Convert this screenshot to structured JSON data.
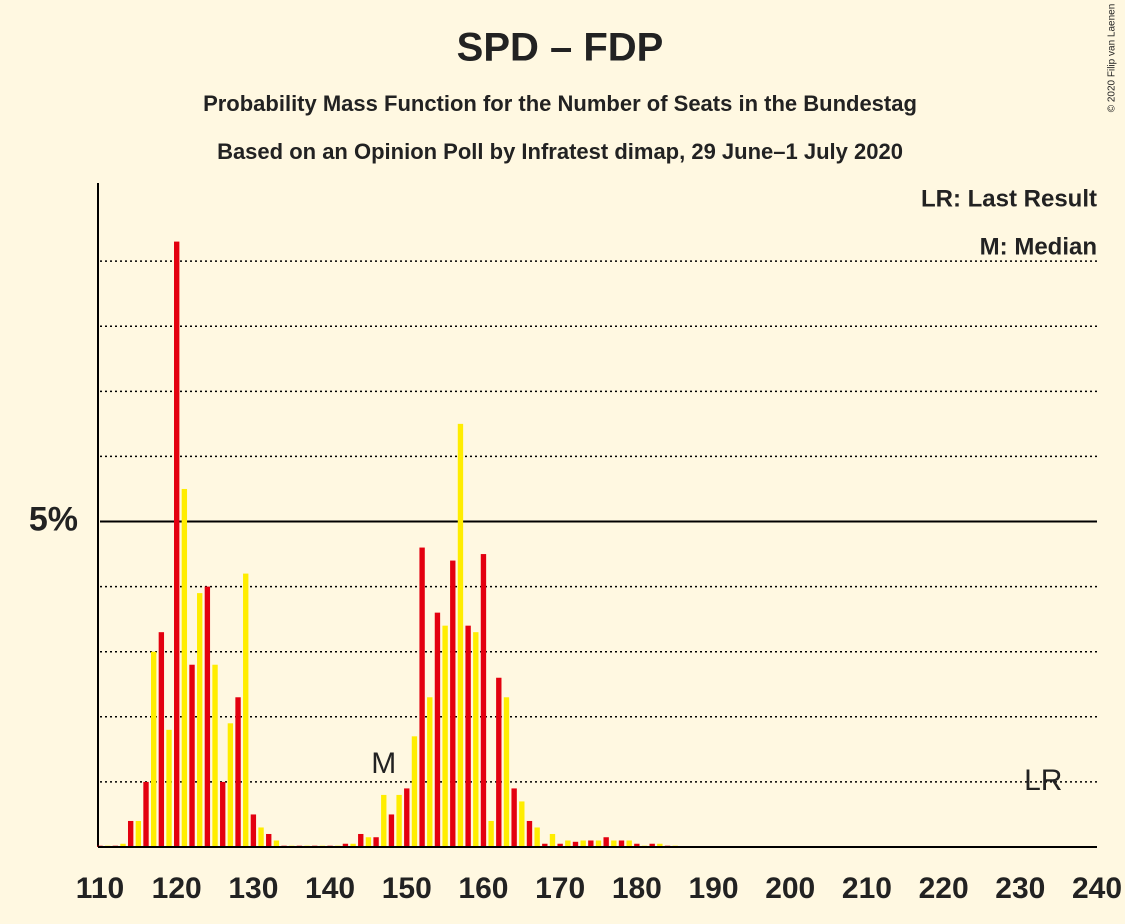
{
  "chart_data": {
    "type": "bar",
    "title": "SPD – FDP",
    "subtitle": "Probability Mass Function for the Number of Seats in the Bundestag",
    "subtitle2": "Based on an Opinion Poll by Infratest dimap, 29 June–1 July 2020",
    "credit": "© 2020 Filip van Laenen",
    "legend": [
      "LR: Last Result",
      "M: Median"
    ],
    "legend_position": "upper right",
    "annotations": [
      {
        "x": 147,
        "label": "M"
      },
      {
        "x": 233,
        "label": "LR"
      }
    ],
    "bar_colors": [
      "#e3000f",
      "#ffed00"
    ],
    "x": [
      110,
      111,
      112,
      113,
      114,
      115,
      116,
      117,
      118,
      119,
      120,
      121,
      122,
      123,
      124,
      125,
      126,
      127,
      128,
      129,
      130,
      131,
      132,
      133,
      134,
      135,
      136,
      137,
      138,
      139,
      140,
      141,
      142,
      143,
      144,
      145,
      146,
      147,
      148,
      149,
      150,
      151,
      152,
      153,
      154,
      155,
      156,
      157,
      158,
      159,
      160,
      161,
      162,
      163,
      164,
      165,
      166,
      167,
      168,
      169,
      170,
      171,
      172,
      173,
      174,
      175,
      176,
      177,
      178,
      179,
      180,
      181,
      182,
      183,
      184,
      185,
      186,
      187,
      188,
      189,
      190,
      191,
      192,
      193,
      194,
      195,
      196,
      197,
      198,
      199,
      200,
      201,
      202,
      203,
      204,
      205,
      206,
      207,
      208,
      209,
      210,
      211,
      212,
      213,
      214,
      215,
      216,
      217,
      218,
      219,
      220,
      221,
      222,
      223,
      224,
      225,
      226,
      227,
      228,
      229,
      230,
      231,
      232,
      233,
      234,
      235,
      236,
      237,
      238,
      239,
      240
    ],
    "values": [
      0.02,
      0.02,
      0.02,
      0.05,
      0.4,
      0.4,
      1.0,
      3.0,
      3.3,
      1.8,
      9.3,
      5.5,
      2.8,
      3.9,
      4.0,
      2.8,
      1.0,
      1.9,
      2.3,
      4.2,
      0.5,
      0.3,
      0.2,
      0.1,
      0.02,
      0.02,
      0.02,
      0.02,
      0.02,
      0.02,
      0.02,
      0.02,
      0.05,
      0.05,
      0.2,
      0.15,
      0.15,
      0.8,
      0.5,
      0.8,
      0.9,
      1.7,
      4.6,
      2.3,
      3.6,
      3.4,
      4.4,
      6.5,
      3.4,
      3.3,
      4.5,
      0.4,
      2.6,
      2.3,
      0.9,
      0.7,
      0.4,
      0.3,
      0.05,
      0.2,
      0.05,
      0.1,
      0.08,
      0.1,
      0.1,
      0.1,
      0.15,
      0.1,
      0.1,
      0.1,
      0.05,
      0.02,
      0.05,
      0.05,
      0.02,
      0.02,
      0.01,
      0.01,
      0.01,
      0.01,
      0,
      0,
      0,
      0,
      0,
      0,
      0,
      0,
      0,
      0,
      0,
      0,
      0,
      0,
      0,
      0,
      0,
      0,
      0,
      0,
      0,
      0,
      0,
      0,
      0,
      0,
      0,
      0,
      0,
      0,
      0,
      0,
      0,
      0,
      0,
      0,
      0,
      0,
      0,
      0,
      0,
      0,
      0,
      0,
      0,
      0,
      0,
      0,
      0,
      0,
      0
    ],
    "xlim": [
      110,
      240
    ],
    "xticks": [
      110,
      120,
      130,
      140,
      150,
      160,
      170,
      180,
      190,
      200,
      210,
      220,
      230,
      240
    ],
    "ylim": [
      0,
      10.2
    ],
    "yticks": [
      {
        "value": 5,
        "label": "5%"
      }
    ],
    "minor_yticks": [
      1,
      2,
      3,
      4,
      6,
      7,
      8,
      9
    ],
    "grid": true
  }
}
